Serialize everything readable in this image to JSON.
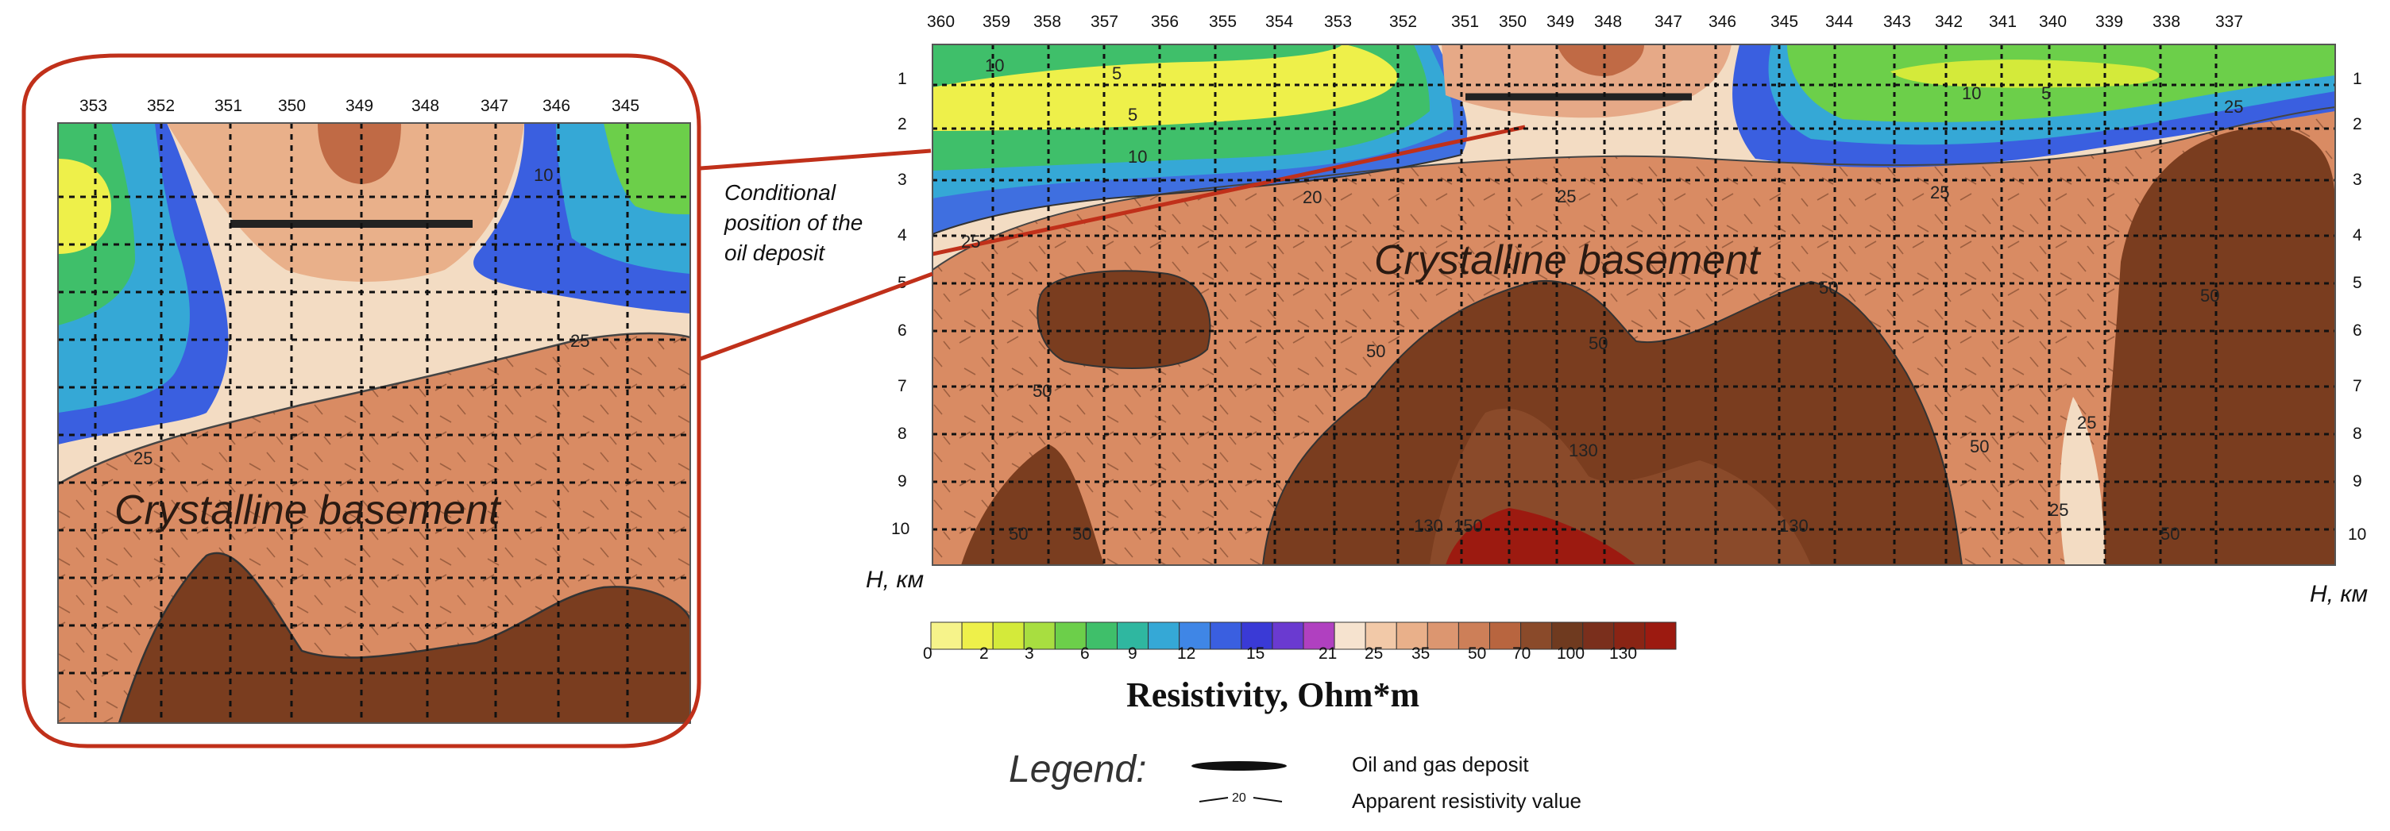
{
  "main_section": {
    "profile_numbers": [
      "360",
      "359",
      "358",
      "357",
      "356",
      "355",
      "354",
      "353",
      "352",
      "351",
      "350",
      "349",
      "348",
      "347",
      "346",
      "345",
      "344",
      "343",
      "342",
      "341",
      "340",
      "339",
      "338",
      "337"
    ],
    "depth_labels": [
      "1",
      "2",
      "3",
      "4",
      "5",
      "6",
      "7",
      "8",
      "9",
      "10"
    ],
    "depth_unit_left": "H, км",
    "depth_unit_right": "H, км",
    "basement_label": "Crystalline basement",
    "contour_labels": {
      "c10a": "10",
      "c5a": "5",
      "c5b": "5",
      "c10b": "10",
      "c10c": "10",
      "c5c": "5",
      "c25a": "25",
      "c20": "20",
      "c25b": "25",
      "c25c": "25",
      "c25d": "25",
      "c50a": "50",
      "c50b": "50",
      "c50c": "50",
      "c50d": "50",
      "c50e": "50",
      "c50f": "50",
      "c50g": "50",
      "c50h": "50",
      "c50i": "50",
      "c130a": "130",
      "c130b": "130",
      "c130c": "130",
      "c150": "150",
      "c25e": "25",
      "c25f": "25"
    }
  },
  "callout_note": {
    "line1": "Conditional",
    "line2": "position of the",
    "line3": "oil deposit"
  },
  "inset": {
    "profile_numbers": [
      "353",
      "352",
      "351",
      "350",
      "349",
      "348",
      "347",
      "346",
      "345"
    ],
    "basement_label": "Crystalline basement",
    "contour_labels": {
      "c10": "10",
      "c25a": "25",
      "c25b": "25"
    }
  },
  "color_scale": {
    "ticks": [
      "0",
      "2",
      "3",
      "6",
      "9",
      "12",
      "15",
      "21",
      "25",
      "35",
      "50",
      "70",
      "100",
      "130"
    ],
    "title": "Resistivity, Ohm*m",
    "colors": [
      "#f6f38a",
      "#eef04a",
      "#d4ea3a",
      "#a8de40",
      "#6ccf4a",
      "#3fbf6a",
      "#2fb7a0",
      "#35a8d6",
      "#3f86e6",
      "#3a5fe0",
      "#3a3ad6",
      "#6a3ad0",
      "#b040c0",
      "#f6e3cf",
      "#f2c9a8",
      "#e9b08a",
      "#dc9670",
      "#cd7f58",
      "#b8653f",
      "#8a4a2a",
      "#6f3a1f",
      "#7a2f1c",
      "#8a2414",
      "#9c1a10"
    ]
  },
  "legend": {
    "title": "Legend:",
    "oil_gas": "Oil and gas deposit",
    "resistivity_value": "Apparent resistivity value",
    "sample_value": "20"
  },
  "colors": {
    "callout_outline": "#c0301a",
    "basement": "#d98b63",
    "deep_basement": "#7a3d1f",
    "light_transition": "#f3dcc3"
  }
}
